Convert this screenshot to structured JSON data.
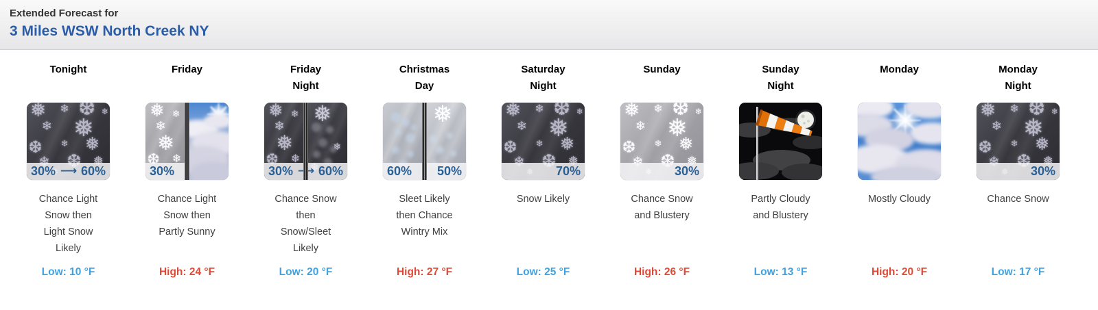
{
  "header": {
    "pretitle": "Extended Forecast for",
    "location": "3 Miles WSW North Creek NY"
  },
  "colors": {
    "location_text": "#2b5ca8",
    "low_temp": "#3fa2e0",
    "high_temp": "#dc4a35",
    "pop_text": "#2b6094"
  },
  "forecast_periods": [
    {
      "name": "Tonight",
      "icon": {
        "art": [
          "snow-night"
        ],
        "pop_left": "30%",
        "pop_arrow": "⟶",
        "pop_right": "60%"
      },
      "description": "Chance Light\nSnow then\nLight Snow\nLikely",
      "temp_label": "Low:",
      "temp_value": "10 °F",
      "temp_type": "low"
    },
    {
      "name": "Friday",
      "icon": {
        "art": [
          "snow-day",
          "partly-sunny"
        ],
        "pop_left": "30%",
        "strip": "left-half"
      },
      "description": "Chance Light\nSnow then\nPartly Sunny",
      "temp_label": "High:",
      "temp_value": "24 °F",
      "temp_type": "high"
    },
    {
      "name": "Friday\nNight",
      "icon": {
        "art": [
          "snow-night",
          "sleet-night"
        ],
        "pop_left": "30%",
        "pop_arrow": "⟶",
        "pop_right": "60%"
      },
      "description": "Chance Snow\nthen\nSnow/Sleet\nLikely",
      "temp_label": "Low:",
      "temp_value": "20 °F",
      "temp_type": "low"
    },
    {
      "name": "Christmas\nDay",
      "icon": {
        "art": [
          "sleet-day",
          "wintry-day"
        ],
        "pop_left": "60%",
        "pop_right": "50%"
      },
      "description": "Sleet Likely\nthen Chance\nWintry Mix",
      "temp_label": "High:",
      "temp_value": "27 °F",
      "temp_type": "high"
    },
    {
      "name": "Saturday\nNight",
      "icon": {
        "art": [
          "snow-night"
        ],
        "pop_right": "70%"
      },
      "description": "Snow Likely",
      "temp_label": "Low:",
      "temp_value": "25 °F",
      "temp_type": "low"
    },
    {
      "name": "Sunday",
      "icon": {
        "art": [
          "snow-day"
        ],
        "pop_right": "30%"
      },
      "description": "Chance Snow\nand Blustery",
      "temp_label": "High:",
      "temp_value": "26 °F",
      "temp_type": "high"
    },
    {
      "name": "Sunday\nNight",
      "icon": {
        "art": [
          "windsock-night"
        ]
      },
      "description": "Partly Cloudy\nand Blustery",
      "temp_label": "Low:",
      "temp_value": "13 °F",
      "temp_type": "low"
    },
    {
      "name": "Monday",
      "icon": {
        "art": [
          "mostly-cloudy"
        ]
      },
      "description": "Mostly Cloudy",
      "temp_label": "High:",
      "temp_value": "20 °F",
      "temp_type": "high"
    },
    {
      "name": "Monday\nNight",
      "icon": {
        "art": [
          "snow-night"
        ],
        "pop_right": "30%"
      },
      "description": "Chance Snow",
      "temp_label": "Low:",
      "temp_value": "17 °F",
      "temp_type": "low"
    }
  ]
}
